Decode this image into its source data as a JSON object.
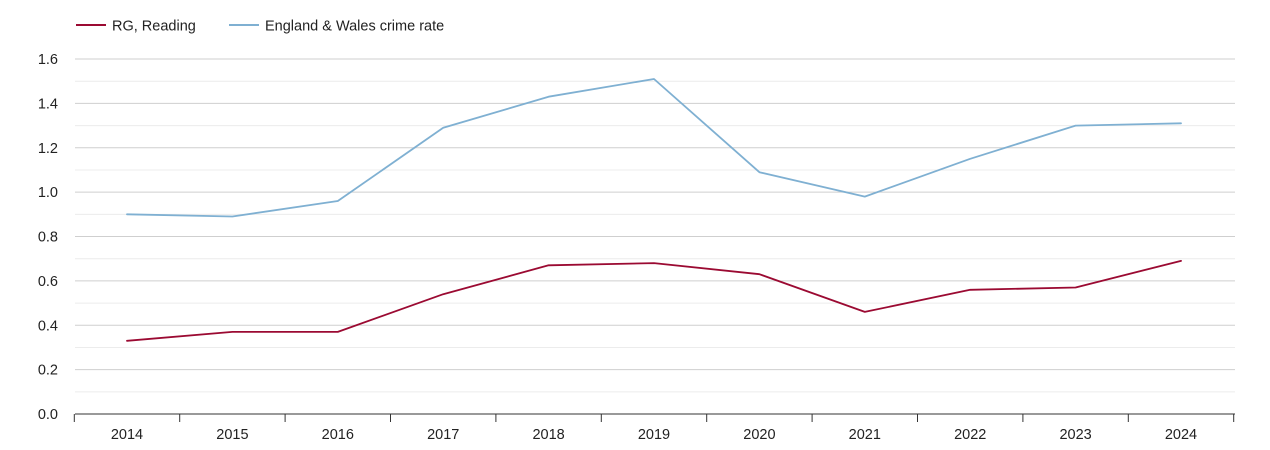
{
  "chart_data": {
    "type": "line",
    "title": "",
    "xlabel": "",
    "ylabel": "",
    "x": [
      "2014",
      "2015",
      "2016",
      "2017",
      "2018",
      "2019",
      "2020",
      "2021",
      "2022",
      "2023",
      "2024"
    ],
    "series": [
      {
        "name": "RG, Reading",
        "color": "#9b0a32",
        "values": [
          0.33,
          0.37,
          0.37,
          0.54,
          0.67,
          0.68,
          0.63,
          0.46,
          0.56,
          0.57,
          0.69
        ]
      },
      {
        "name": "England & Wales crime rate",
        "color": "#7fb0d2",
        "values": [
          0.9,
          0.89,
          0.96,
          1.29,
          1.43,
          1.51,
          1.09,
          0.98,
          1.15,
          1.3,
          1.31
        ]
      }
    ],
    "ylim": [
      0,
      1.6
    ],
    "yticks": [
      "0.0",
      "0.2",
      "0.4",
      "0.6",
      "0.8",
      "1.0",
      "1.2",
      "1.4",
      "1.6"
    ],
    "grid": true,
    "legend_position": "top-left"
  }
}
